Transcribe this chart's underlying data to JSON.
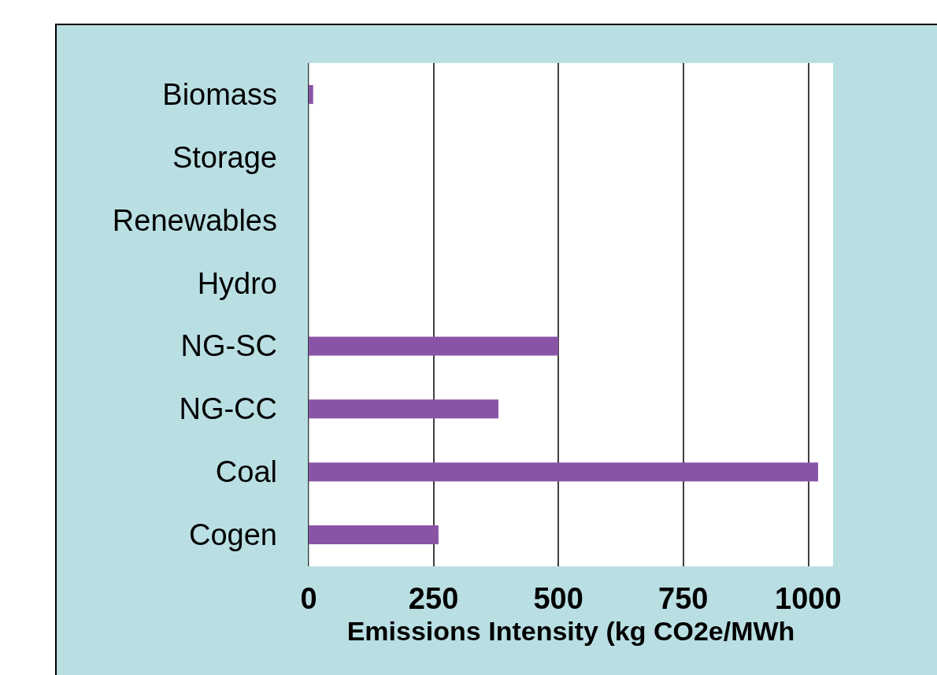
{
  "chart_data": {
    "type": "bar",
    "orientation": "horizontal",
    "xlabel": "Emissions Intensity (kg CO2e/MWh",
    "categories": [
      "Biomass",
      "Storage",
      "Renewables",
      "Hydro",
      "NG-SC",
      "NG-CC",
      "Coal",
      "Cogen"
    ],
    "values": [
      9,
      0,
      0,
      0,
      500,
      380,
      1020,
      260
    ],
    "color": "#8954a5",
    "xlim": [
      0,
      1050
    ],
    "xticks": [
      0,
      250,
      500,
      750,
      1000
    ],
    "grid": "x"
  }
}
